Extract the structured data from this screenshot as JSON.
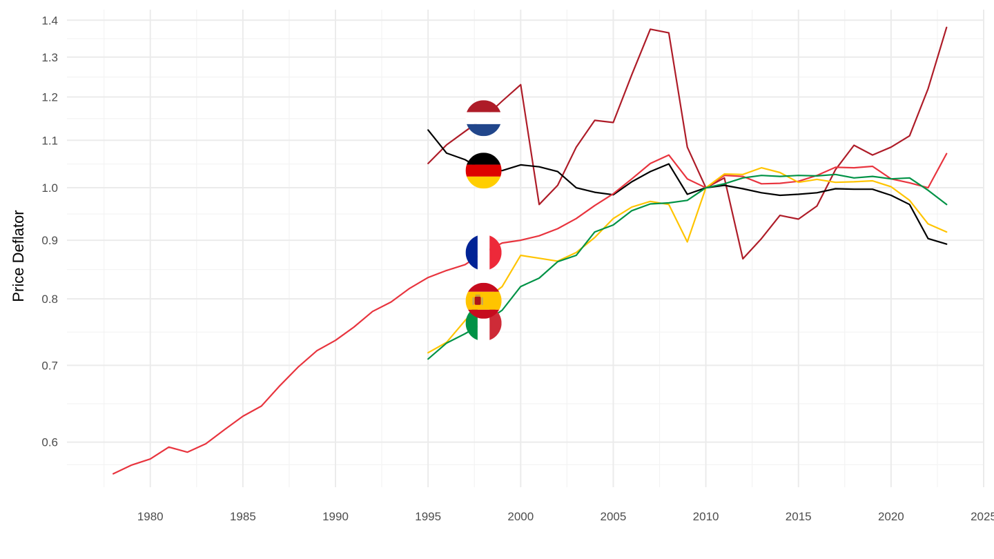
{
  "chart_data": {
    "type": "line",
    "title": "",
    "xlabel": "",
    "ylabel": "Price Deflator",
    "y_scale": "log",
    "xlim": [
      1975.5,
      2025
    ],
    "ylim": [
      0.548,
      1.43
    ],
    "x_ticks": [
      1980,
      1985,
      1990,
      1995,
      2000,
      2005,
      2010,
      2015,
      2020,
      2025
    ],
    "y_ticks": [
      0.6,
      0.7,
      0.8,
      0.9,
      1.0,
      1.1,
      1.2,
      1.3,
      1.4
    ],
    "y_tick_labels": [
      "0.6",
      "0.7",
      "0.8",
      "0.9",
      "1.0",
      "1.1",
      "1.2",
      "1.3",
      "1.4"
    ],
    "grid": true,
    "legend": "flag icons placed on the lines near 1998",
    "series": [
      {
        "country": "Netherlands",
        "color": "#AE1C28",
        "flag": "netherlands-flag",
        "x": [
          1995,
          1996,
          1997,
          1998,
          1999,
          2000,
          2001,
          2002,
          2003,
          2004,
          2005,
          2006,
          2007,
          2008,
          2009,
          2010,
          2011,
          2012,
          2013,
          2014,
          2015,
          2016,
          2017,
          2018,
          2019,
          2020,
          2021,
          2022,
          2023
        ],
        "y": [
          1.05,
          1.09,
          1.12,
          1.15,
          1.19,
          1.23,
          0.967,
          1.005,
          1.085,
          1.145,
          1.14,
          1.255,
          1.375,
          1.365,
          1.085,
          1.0,
          1.02,
          0.867,
          0.903,
          0.946,
          0.939,
          0.964,
          1.037,
          1.089,
          1.068,
          1.085,
          1.11,
          1.22,
          1.38
        ]
      },
      {
        "country": "Germany",
        "color": "#000000",
        "flag": "germany-flag",
        "x": [
          1995,
          1996,
          1997,
          1998,
          1999,
          2000,
          2001,
          2002,
          2003,
          2004,
          2005,
          2006,
          2007,
          2008,
          2009,
          2010,
          2011,
          2012,
          2013,
          2014,
          2015,
          2016,
          2017,
          2018,
          2019,
          2020,
          2021,
          2022,
          2023
        ],
        "y": [
          1.123,
          1.072,
          1.058,
          1.035,
          1.035,
          1.047,
          1.043,
          1.033,
          1.0,
          0.991,
          0.986,
          1.012,
          1.033,
          1.049,
          0.987,
          1.0,
          1.005,
          0.998,
          0.99,
          0.985,
          0.987,
          0.99,
          0.998,
          0.997,
          0.997,
          0.985,
          0.967,
          0.903,
          0.893
        ]
      },
      {
        "country": "France",
        "color": "#E8343E",
        "flag": "france-flag",
        "x": [
          1978,
          1979,
          1980,
          1981,
          1982,
          1983,
          1984,
          1985,
          1986,
          1987,
          1988,
          1989,
          1990,
          1991,
          1992,
          1993,
          1994,
          1995,
          1996,
          1997,
          1998,
          1999,
          2000,
          2001,
          2002,
          2003,
          2004,
          2005,
          2006,
          2007,
          2008,
          2009,
          2010,
          2011,
          2012,
          2013,
          2014,
          2015,
          2016,
          2017,
          2018,
          2019,
          2020,
          2021,
          2022,
          2023
        ],
        "y": [
          0.563,
          0.573,
          0.58,
          0.594,
          0.588,
          0.598,
          0.615,
          0.632,
          0.645,
          0.672,
          0.698,
          0.721,
          0.736,
          0.756,
          0.78,
          0.795,
          0.817,
          0.835,
          0.847,
          0.857,
          0.878,
          0.895,
          0.9,
          0.908,
          0.921,
          0.94,
          0.965,
          0.988,
          1.018,
          1.05,
          1.068,
          1.018,
          1.0,
          1.025,
          1.023,
          1.008,
          1.009,
          1.013,
          1.025,
          1.042,
          1.041,
          1.044,
          1.018,
          1.01,
          1.0,
          1.071
        ]
      },
      {
        "country": "Spain",
        "color": "#FFC400",
        "flag": "spain-flag",
        "x": [
          1995,
          1996,
          1997,
          1998,
          1999,
          2000,
          2001,
          2002,
          2003,
          2004,
          2005,
          2006,
          2007,
          2008,
          2009,
          2010,
          2011,
          2012,
          2013,
          2014,
          2015,
          2016,
          2017,
          2018,
          2019,
          2020,
          2021,
          2022,
          2023
        ],
        "y": [
          0.718,
          0.733,
          0.766,
          0.797,
          0.82,
          0.873,
          0.868,
          0.863,
          0.878,
          0.905,
          0.94,
          0.962,
          0.973,
          0.967,
          0.897,
          1.0,
          1.028,
          1.027,
          1.041,
          1.031,
          1.011,
          1.017,
          1.011,
          1.012,
          1.014,
          1.002,
          0.975,
          0.93,
          0.915
        ]
      },
      {
        "country": "Italy",
        "color": "#009246",
        "flag": "italy-flag",
        "x": [
          1995,
          1996,
          1997,
          1998,
          1999,
          2000,
          2001,
          2002,
          2003,
          2004,
          2005,
          2006,
          2007,
          2008,
          2009,
          2010,
          2011,
          2012,
          2013,
          2014,
          2015,
          2016,
          2017,
          2018,
          2019,
          2020,
          2021,
          2022,
          2023
        ],
        "y": [
          0.709,
          0.732,
          0.746,
          0.762,
          0.782,
          0.82,
          0.834,
          0.862,
          0.873,
          0.915,
          0.928,
          0.955,
          0.968,
          0.97,
          0.975,
          1.0,
          1.008,
          1.02,
          1.025,
          1.023,
          1.025,
          1.024,
          1.027,
          1.02,
          1.023,
          1.018,
          1.02,
          0.995,
          0.967
        ]
      }
    ],
    "flag_markers": [
      {
        "flag": "netherlands-flag",
        "x": 1998,
        "y": 1.15
      },
      {
        "flag": "germany-flag",
        "x": 1998,
        "y": 1.035
      },
      {
        "flag": "france-flag",
        "x": 1998,
        "y": 0.878
      },
      {
        "flag": "spain-flag",
        "x": 1998,
        "y": 0.797
      },
      {
        "flag": "italy-flag",
        "x": 1998,
        "y": 0.762
      }
    ]
  }
}
